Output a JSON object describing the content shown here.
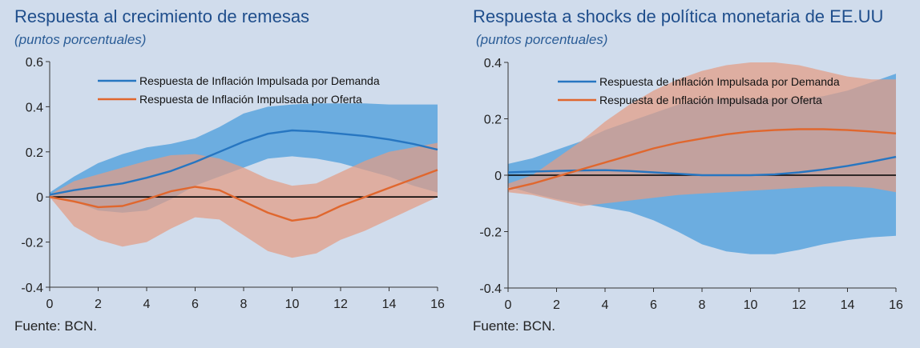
{
  "colors": {
    "background": "#d0dcec",
    "demand": "#2776c1",
    "supply": "#e0672e",
    "demand_band": "#5aa4de",
    "supply_band": "#e39c83",
    "zero_line": "#000000"
  },
  "chart_data": [
    {
      "type": "line",
      "title": "Respuesta al crecimiento de remesas",
      "subtitle": "(puntos porcentuales)",
      "source": "Fuente: BCN.",
      "xlabel": "",
      "ylabel": "",
      "xlim": [
        0,
        16
      ],
      "ylim": [
        -0.4,
        0.6
      ],
      "xticks": [
        0,
        2,
        4,
        6,
        8,
        10,
        12,
        14,
        16
      ],
      "yticks": [
        -0.4,
        -0.2,
        0,
        0.2,
        0.4,
        0.6
      ],
      "ytick_labels": [
        "-0.4",
        "-0.2",
        "0",
        "0.2",
        "0.4",
        "0.6"
      ],
      "grid": false,
      "legend_position": "top-center",
      "x": [
        0,
        1,
        2,
        3,
        4,
        5,
        6,
        7,
        8,
        9,
        10,
        11,
        12,
        13,
        14,
        15,
        16
      ],
      "series": [
        {
          "name": "Respuesta de Inflación Impulsada por Demanda",
          "color_key": "demand",
          "values": [
            0.01,
            0.03,
            0.045,
            0.06,
            0.085,
            0.115,
            0.155,
            0.2,
            0.245,
            0.28,
            0.295,
            0.29,
            0.28,
            0.27,
            0.255,
            0.235,
            0.21
          ],
          "band_lower": [
            0.0,
            -0.02,
            -0.06,
            -0.07,
            -0.06,
            -0.01,
            0.05,
            0.09,
            0.13,
            0.17,
            0.18,
            0.17,
            0.15,
            0.12,
            0.09,
            0.05,
            0.02
          ],
          "band_upper": [
            0.02,
            0.09,
            0.15,
            0.19,
            0.22,
            0.235,
            0.26,
            0.31,
            0.37,
            0.4,
            0.41,
            0.415,
            0.415,
            0.415,
            0.41,
            0.41,
            0.41
          ]
        },
        {
          "name": "Respuesta de Inflación Impulsada por Oferta",
          "color_key": "supply",
          "values": [
            0.0,
            -0.02,
            -0.045,
            -0.04,
            -0.01,
            0.025,
            0.045,
            0.03,
            -0.02,
            -0.07,
            -0.105,
            -0.09,
            -0.04,
            0.0,
            0.04,
            0.08,
            0.12
          ],
          "band_lower": [
            0.0,
            -0.13,
            -0.19,
            -0.22,
            -0.2,
            -0.14,
            -0.09,
            -0.1,
            -0.17,
            -0.24,
            -0.27,
            -0.25,
            -0.19,
            -0.15,
            -0.1,
            -0.05,
            0.0
          ],
          "band_upper": [
            0.01,
            0.07,
            0.1,
            0.13,
            0.16,
            0.185,
            0.19,
            0.17,
            0.13,
            0.08,
            0.05,
            0.06,
            0.11,
            0.16,
            0.2,
            0.22,
            0.24
          ]
        }
      ]
    },
    {
      "type": "line",
      "title": "Respuesta a shocks de política monetaria de EE.UU",
      "subtitle": "(puntos porcentuales)",
      "source": "Fuente: BCN.",
      "xlabel": "",
      "ylabel": "",
      "xlim": [
        0,
        16
      ],
      "ylim": [
        -0.4,
        0.4
      ],
      "xticks": [
        0,
        2,
        4,
        6,
        8,
        10,
        12,
        14,
        16
      ],
      "yticks": [
        -0.4,
        -0.2,
        0,
        0.2,
        0.4
      ],
      "ytick_labels": [
        "-0.4",
        "-0.2",
        "0",
        "0.2",
        "0.4"
      ],
      "grid": false,
      "legend_position": "top-center",
      "x": [
        0,
        1,
        2,
        3,
        4,
        5,
        6,
        7,
        8,
        9,
        10,
        11,
        12,
        13,
        14,
        15,
        16
      ],
      "series": [
        {
          "name": "Respuesta de Inflación Impulsada por Demanda",
          "color_key": "demand",
          "values": [
            0.01,
            0.013,
            0.015,
            0.017,
            0.018,
            0.015,
            0.01,
            0.005,
            0.0,
            0.0,
            0.0,
            0.003,
            0.01,
            0.02,
            0.033,
            0.048,
            0.065
          ],
          "band_lower": [
            -0.04,
            -0.065,
            -0.085,
            -0.1,
            -0.115,
            -0.13,
            -0.16,
            -0.2,
            -0.245,
            -0.27,
            -0.28,
            -0.28,
            -0.265,
            -0.245,
            -0.23,
            -0.22,
            -0.215
          ],
          "band_upper": [
            0.04,
            0.06,
            0.09,
            0.12,
            0.16,
            0.19,
            0.22,
            0.25,
            0.27,
            0.27,
            0.27,
            0.27,
            0.27,
            0.28,
            0.3,
            0.33,
            0.36
          ]
        },
        {
          "name": "Respuesta de Inflación Impulsada por Oferta",
          "color_key": "supply",
          "values": [
            -0.05,
            -0.03,
            -0.005,
            0.02,
            0.045,
            0.07,
            0.095,
            0.115,
            0.13,
            0.145,
            0.155,
            0.16,
            0.163,
            0.163,
            0.16,
            0.155,
            0.148
          ],
          "band_lower": [
            -0.06,
            -0.07,
            -0.09,
            -0.11,
            -0.1,
            -0.09,
            -0.08,
            -0.07,
            -0.065,
            -0.06,
            -0.055,
            -0.05,
            -0.045,
            -0.04,
            -0.04,
            -0.045,
            -0.06
          ],
          "band_upper": [
            -0.03,
            0.0,
            0.06,
            0.12,
            0.19,
            0.25,
            0.3,
            0.34,
            0.37,
            0.39,
            0.4,
            0.4,
            0.39,
            0.37,
            0.35,
            0.34,
            0.34
          ]
        }
      ]
    }
  ]
}
